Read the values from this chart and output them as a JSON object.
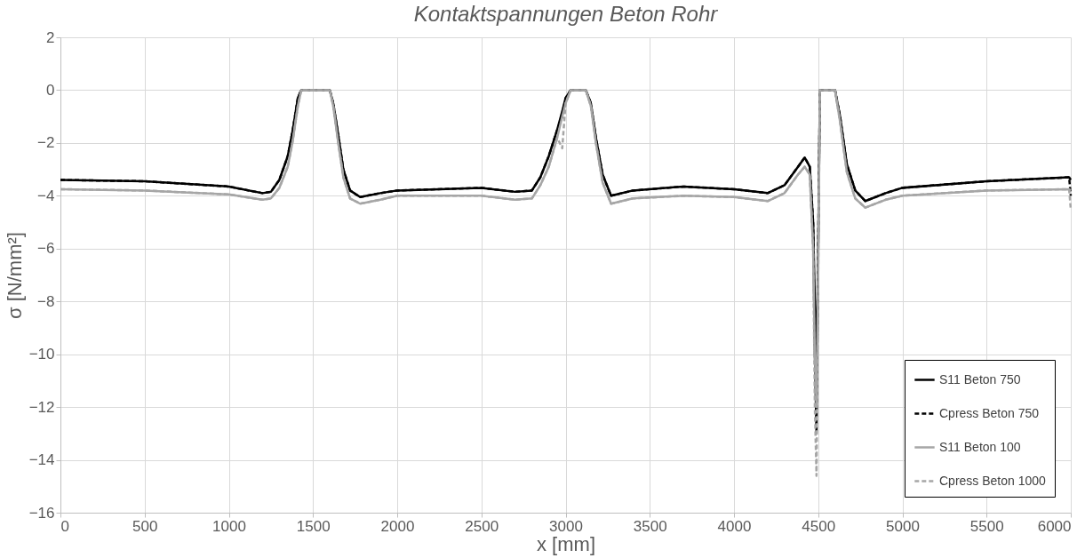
{
  "chart_data": {
    "type": "line",
    "title": "Kontaktspannungen Beton Rohr",
    "xlabel": "x [mm]",
    "ylabel": "σ [N/mm²]",
    "x": [
      0,
      500,
      1000,
      1200,
      1250,
      1300,
      1350,
      1380,
      1410,
      1430,
      1600,
      1620,
      1650,
      1680,
      1720,
      1780,
      1900,
      2000,
      2500,
      2700,
      2800,
      2850,
      2900,
      2950,
      2980,
      3000,
      3030,
      3120,
      3150,
      3180,
      3220,
      3270,
      3400,
      3700,
      4000,
      4200,
      4300,
      4380,
      4420,
      4450,
      4470,
      4480,
      4490,
      4500,
      4510,
      4600,
      4630,
      4670,
      4720,
      4780,
      4900,
      5000,
      5500,
      5990,
      6000
    ],
    "series": [
      {
        "name": "S11 Beton 750",
        "color": "#000000",
        "line_style": "solid",
        "values": [
          -3.4,
          -3.45,
          -3.65,
          -3.9,
          -3.85,
          -3.4,
          -2.5,
          -1.5,
          -0.3,
          0,
          0,
          -0.5,
          -1.7,
          -3,
          -3.8,
          -4.05,
          -3.9,
          -3.8,
          -3.7,
          -3.85,
          -3.8,
          -3.3,
          -2.5,
          -1.5,
          -0.8,
          -0.3,
          0,
          0,
          -0.5,
          -1.8,
          -3.2,
          -4.0,
          -3.8,
          -3.65,
          -3.75,
          -3.9,
          -3.6,
          -2.9,
          -2.55,
          -2.9,
          -5,
          -8,
          -10.5,
          -6,
          0,
          0,
          -1,
          -2.8,
          -3.8,
          -4.2,
          -3.9,
          -3.7,
          -3.45,
          -3.3,
          -3.4
        ]
      },
      {
        "name": "Cpress Beton 750",
        "color": "#000000",
        "line_style": "dashed",
        "values": [
          -3.4,
          -3.45,
          -3.65,
          -3.9,
          -3.85,
          -3.4,
          -2.5,
          -1.5,
          -0.3,
          0,
          0,
          -0.5,
          -1.7,
          -3,
          -3.8,
          -4.05,
          -3.9,
          -3.8,
          -3.7,
          -3.85,
          -3.8,
          -3.3,
          -2.5,
          -1.5,
          -1.0,
          -0.3,
          0,
          0,
          -0.5,
          -1.8,
          -3.2,
          -4.0,
          -3.8,
          -3.65,
          -3.75,
          -3.9,
          -3.6,
          -2.9,
          -2.55,
          -2.9,
          -5,
          -10,
          -13,
          -6,
          0,
          0,
          -1,
          -2.8,
          -3.8,
          -4.2,
          -3.9,
          -3.7,
          -3.45,
          -3.3,
          -4.0
        ]
      },
      {
        "name": "S11 Beton 100",
        "color": "#a6a6a6",
        "line_style": "solid",
        "values": [
          -3.75,
          -3.8,
          -3.95,
          -4.15,
          -4.1,
          -3.7,
          -2.9,
          -1.9,
          -0.6,
          0,
          0,
          -0.6,
          -2.0,
          -3.3,
          -4.1,
          -4.3,
          -4.15,
          -4.0,
          -4.0,
          -4.15,
          -4.1,
          -3.6,
          -2.9,
          -1.8,
          -1.0,
          -0.5,
          0,
          0,
          -0.6,
          -2.0,
          -3.5,
          -4.3,
          -4.1,
          -4.0,
          -4.05,
          -4.2,
          -3.9,
          -3.2,
          -2.9,
          -3.2,
          -6,
          -10,
          -12,
          -7,
          0,
          0,
          -1.2,
          -3.1,
          -4.1,
          -4.45,
          -4.15,
          -4.0,
          -3.8,
          -3.75,
          -3.8
        ]
      },
      {
        "name": "Cpress Beton 1000",
        "color": "#a6a6a6",
        "line_style": "dashed",
        "values": [
          -3.75,
          -3.8,
          -3.95,
          -4.15,
          -4.1,
          -3.7,
          -2.9,
          -1.9,
          -0.6,
          0,
          0,
          -0.6,
          -2.0,
          -3.3,
          -4.1,
          -4.3,
          -4.15,
          -4.0,
          -4.0,
          -4.15,
          -4.1,
          -3.6,
          -2.9,
          -1.8,
          -2.2,
          -0.5,
          0,
          0,
          -0.6,
          -2.0,
          -3.5,
          -4.3,
          -4.1,
          -4.0,
          -4.05,
          -4.2,
          -3.9,
          -3.2,
          -2.9,
          -3.2,
          -6,
          -12,
          -14.6,
          -7,
          0,
          0,
          -1.2,
          -3.1,
          -4.1,
          -4.45,
          -4.15,
          -4.0,
          -3.8,
          -3.75,
          -4.5
        ]
      }
    ],
    "xlim": [
      0,
      6000
    ],
    "xticks": [
      0,
      500,
      1000,
      1500,
      2000,
      2500,
      3000,
      3500,
      4000,
      4500,
      5000,
      5500,
      6000
    ],
    "ylim": [
      -16,
      2
    ],
    "yticks": [
      -16,
      -14,
      -12,
      -10,
      -8,
      -6,
      -4,
      -2,
      0,
      2
    ],
    "grid": true,
    "legend": "bottom right",
    "marker": "none"
  }
}
